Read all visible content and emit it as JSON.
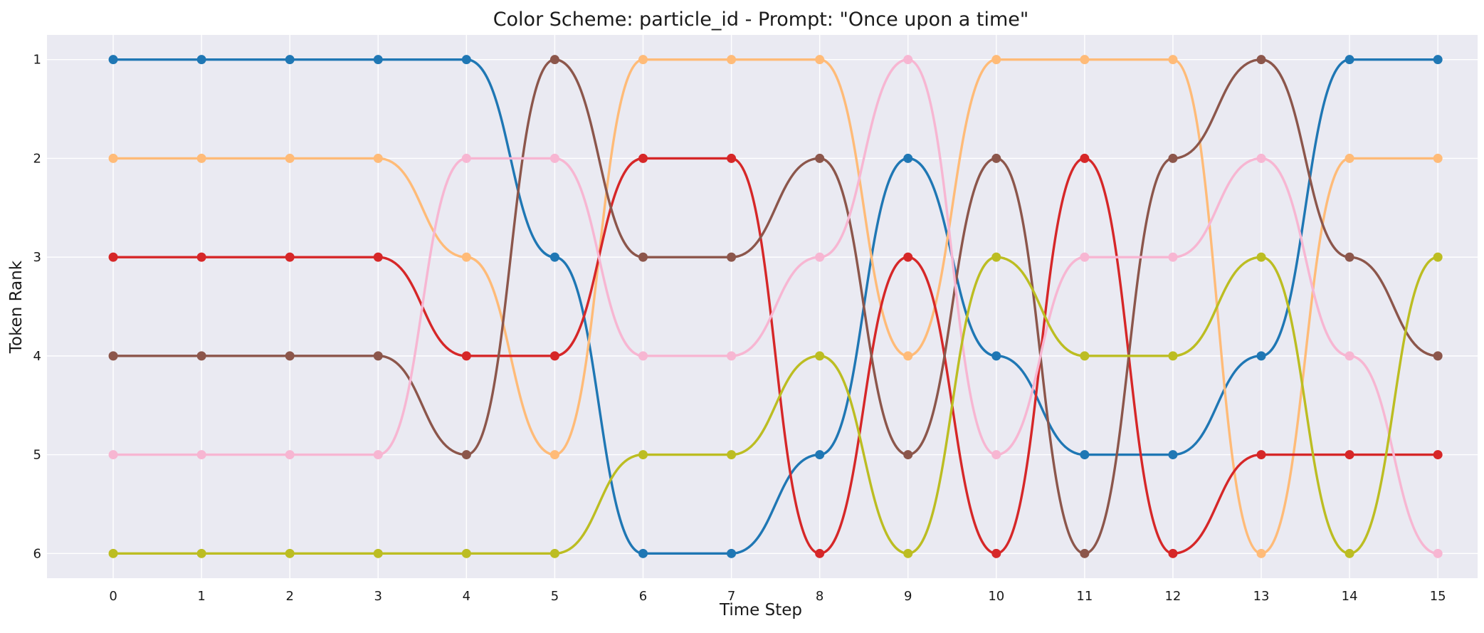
{
  "chart_data": {
    "type": "line",
    "title": "Color Scheme: particle_id - Prompt: \"Once upon a time\"",
    "xlabel": "Time Step",
    "ylabel": "Token Rank",
    "x": [
      0,
      1,
      2,
      3,
      4,
      5,
      6,
      7,
      8,
      9,
      10,
      11,
      12,
      13,
      14,
      15
    ],
    "xlim": [
      -0.75,
      15.45
    ],
    "ylim": [
      6.25,
      0.75
    ],
    "y_inverted": true,
    "y_ticks": [
      1,
      2,
      3,
      4,
      5,
      6
    ],
    "grid": true,
    "background": "#eaeaf2",
    "legend": "none",
    "series": [
      {
        "color": "#1f77b4",
        "values": [
          1,
          1,
          1,
          1,
          1,
          3,
          6,
          6,
          5,
          2,
          4,
          5,
          5,
          4,
          1,
          1
        ]
      },
      {
        "color": "#ffbb78",
        "values": [
          2,
          2,
          2,
          2,
          3,
          5,
          1,
          1,
          1,
          4,
          1,
          1,
          1,
          6,
          2,
          2
        ]
      },
      {
        "color": "#d62728",
        "values": [
          3,
          3,
          3,
          3,
          4,
          4,
          2,
          2,
          6,
          3,
          6,
          2,
          6,
          5,
          5,
          5
        ]
      },
      {
        "color": "#8c564b",
        "values": [
          4,
          4,
          4,
          4,
          5,
          1,
          3,
          3,
          2,
          5,
          2,
          6,
          2,
          1,
          3,
          4
        ]
      },
      {
        "color": "#f7b6d2",
        "values": [
          5,
          5,
          5,
          5,
          2,
          2,
          4,
          4,
          3,
          1,
          5,
          3,
          3,
          2,
          4,
          6
        ]
      },
      {
        "color": "#bcbd22",
        "values": [
          6,
          6,
          6,
          6,
          6,
          6,
          5,
          5,
          4,
          6,
          3,
          4,
          4,
          3,
          6,
          3
        ]
      }
    ]
  }
}
